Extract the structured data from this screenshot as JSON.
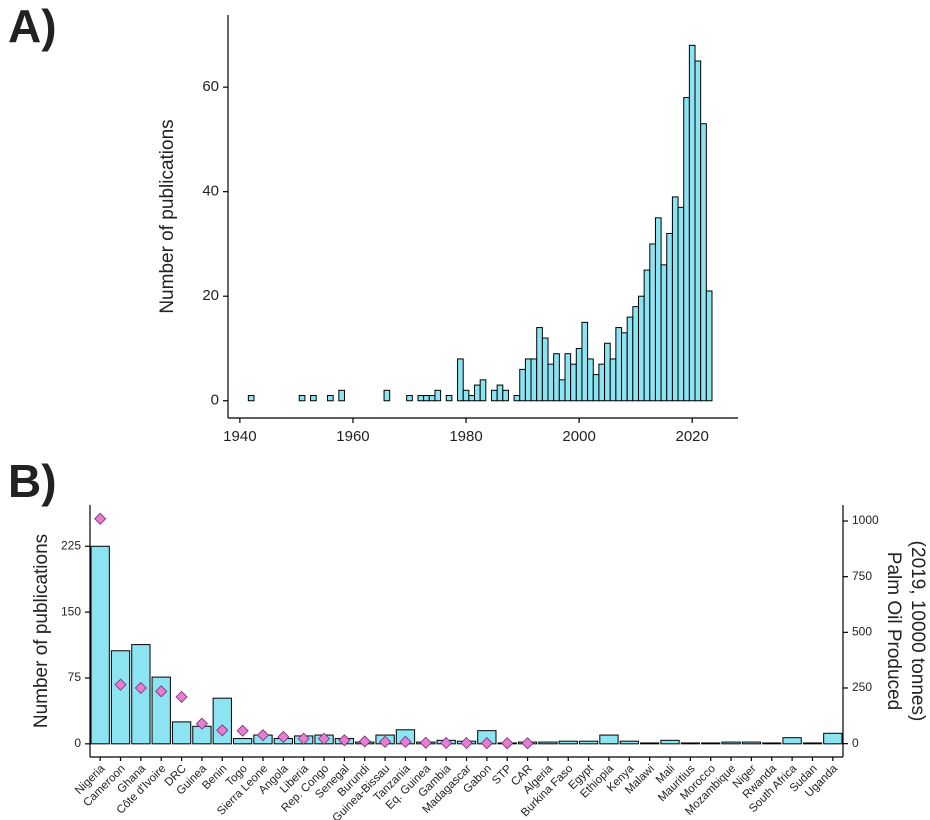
{
  "chart_data": [
    {
      "type": "bar",
      "panel_label": "A)",
      "ylabel": "Number of publications",
      "color": "#8ce3f2",
      "x": [
        1942,
        1951,
        1953,
        1956,
        1958,
        1966,
        1970,
        1972,
        1973,
        1974,
        1975,
        1977,
        1979,
        1980,
        1981,
        1982,
        1983,
        1985,
        1986,
        1987,
        1989,
        1990,
        1991,
        1992,
        1993,
        1994,
        1995,
        1996,
        1997,
        1998,
        1999,
        2000,
        2001,
        2002,
        2003,
        2004,
        2005,
        2006,
        2007,
        2008,
        2009,
        2010,
        2011,
        2012,
        2013,
        2014,
        2015,
        2016,
        2017,
        2018,
        2019,
        2020,
        2021,
        2022,
        2023
      ],
      "values": [
        1,
        1,
        1,
        1,
        2,
        2,
        1,
        1,
        1,
        1,
        2,
        1,
        8,
        2,
        1,
        3,
        4,
        2,
        3,
        2,
        1,
        6,
        8,
        8,
        14,
        12,
        7,
        9,
        4,
        9,
        7,
        10,
        15,
        8,
        5,
        7,
        11,
        8,
        14,
        13,
        16,
        18,
        20,
        25,
        30,
        35,
        26,
        32,
        39,
        37,
        58,
        68,
        65,
        53,
        21
      ],
      "xlim": [
        1937.9,
        2028.1
      ],
      "xticks": [
        1940,
        1960,
        1980,
        2000,
        2020
      ],
      "ylim": [
        -3.3,
        73.8
      ],
      "yticks": [
        0,
        20,
        40,
        60
      ]
    },
    {
      "type": "bar",
      "panel_label": "B)",
      "ylabel": "Number of publications",
      "y2label": [
        "Palm Oil Produced",
        "(2019, 10000 tonnes)"
      ],
      "categories": [
        "Nigeria",
        "Cameroon",
        "Ghana",
        "Côte d'Ivoire",
        "DRC",
        "Guinea",
        "Benin",
        "Togo",
        "Sierra Leone",
        "Angola",
        "Liberia",
        "Rep. Congo",
        "Senegal",
        "Burundi",
        "Guinea-Bissau",
        "Tanzania",
        "Eq. Guinea",
        "Gambia",
        "Madagascar",
        "Gabon",
        "STP",
        "CAR",
        "Algeria",
        "Burkina Faso",
        "Egypt",
        "Ethiopia",
        "Kenya",
        "Malawi",
        "Mali",
        "Mauritius",
        "Morocco",
        "Mozambique",
        "Niger",
        "Rwanda",
        "South Africa",
        "Sudan",
        "Uganda"
      ],
      "series": [
        {
          "color": "#8ce3f2",
          "values": [
            225,
            106,
            113,
            76,
            25,
            20,
            52,
            6,
            10,
            6,
            9,
            10,
            6,
            2,
            10,
            16,
            2,
            4,
            3,
            15,
            1,
            2,
            2,
            3,
            3,
            10,
            3,
            1,
            4,
            1,
            1,
            2,
            2,
            1,
            7,
            1,
            12
          ]
        },
        {
          "color": "#e57dd3",
          "axis": "y2",
          "marker": "diamond",
          "values": [
            1010,
            265,
            250,
            235,
            210,
            90,
            60,
            58,
            38,
            30,
            22,
            22,
            15,
            10,
            8,
            8,
            4,
            3,
            3,
            2,
            2,
            2,
            null,
            null,
            null,
            null,
            null,
            null,
            null,
            null,
            null,
            null,
            null,
            null,
            null,
            null,
            null
          ]
        }
      ],
      "ylim": [
        -15,
        272
      ],
      "yticks": [
        0,
        75,
        150,
        225
      ],
      "y2lim": [
        -60,
        1072
      ],
      "y2ticks": [
        0,
        250,
        500,
        750,
        1000
      ]
    }
  ]
}
